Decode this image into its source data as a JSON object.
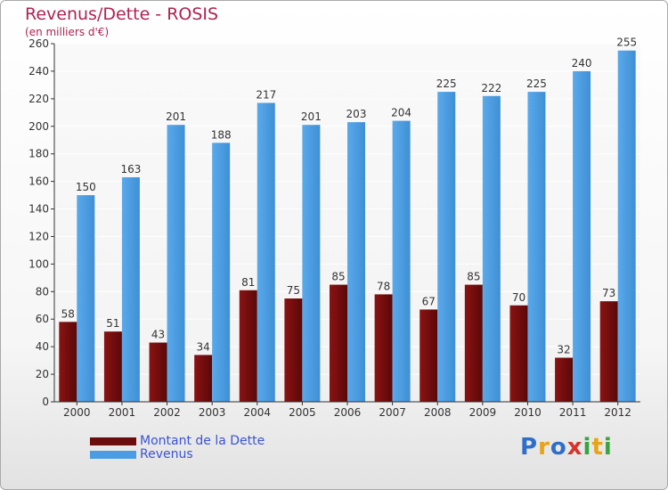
{
  "title": "Revenus/Dette - ROSIS",
  "subtitle": "(en milliers d'€)",
  "colors": {
    "dette": "#6b0d0d",
    "revenus": "#4a9de4",
    "axis": "#333333",
    "grid": "#ffffff",
    "label": "#333333"
  },
  "legend": {
    "dette_label": "Montant de la Dette",
    "revenus_label": "Revenus"
  },
  "logo": {
    "text": "Proxiti"
  },
  "chart_data": {
    "type": "bar",
    "categories": [
      "2000",
      "2001",
      "2002",
      "2003",
      "2004",
      "2005",
      "2006",
      "2007",
      "2008",
      "2009",
      "2010",
      "2011",
      "2012"
    ],
    "series": [
      {
        "name": "Montant de la Dette",
        "values": [
          58,
          51,
          43,
          34,
          81,
          75,
          85,
          78,
          67,
          85,
          70,
          32,
          73
        ]
      },
      {
        "name": "Revenus",
        "values": [
          150,
          163,
          201,
          188,
          217,
          201,
          203,
          204,
          225,
          222,
          225,
          240,
          255
        ]
      }
    ],
    "ylim": [
      0,
      260
    ],
    "yticks": [
      0,
      20,
      40,
      60,
      80,
      100,
      120,
      140,
      160,
      180,
      200,
      220,
      240,
      260
    ],
    "grid": true,
    "legend_position": "bottom-left"
  }
}
